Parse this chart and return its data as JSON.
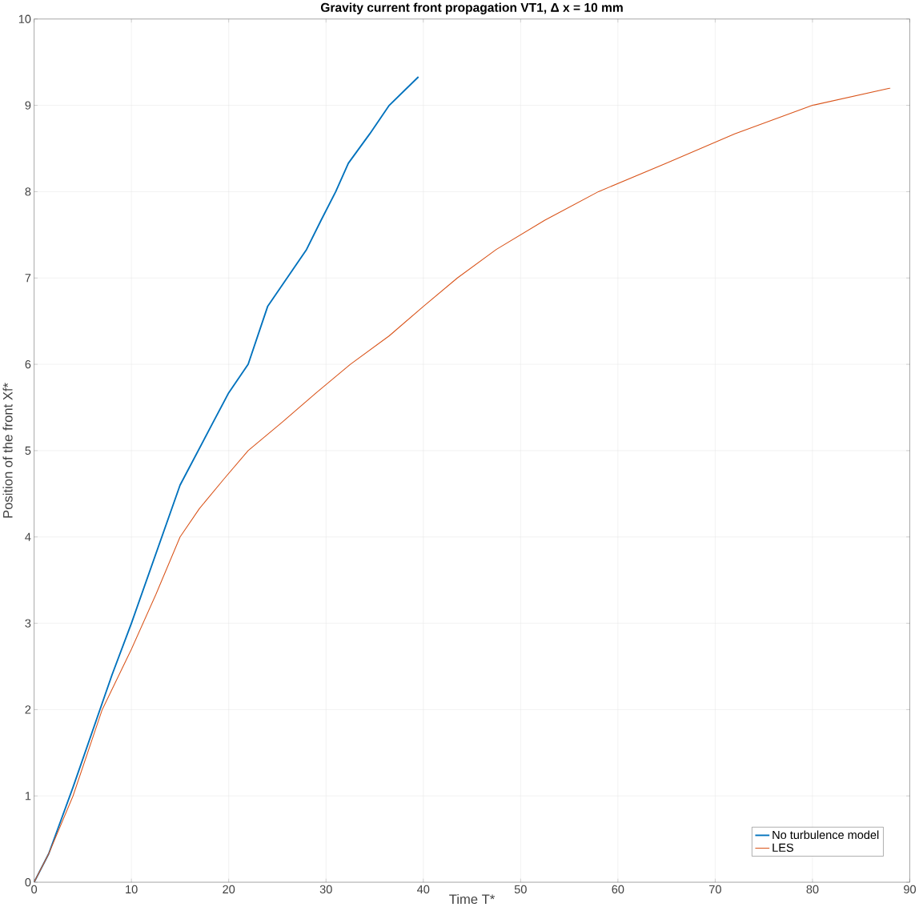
{
  "chart_data": {
    "type": "line",
    "title": "Gravity current front propagation VT1, Δ x = 10 mm",
    "xlabel": "Time T*",
    "ylabel": "Position of the front Xf*",
    "xlim": [
      0,
      90
    ],
    "ylim": [
      0,
      10
    ],
    "xticks": [
      0,
      10,
      20,
      30,
      40,
      50,
      60,
      70,
      80,
      90
    ],
    "yticks": [
      0,
      1,
      2,
      3,
      4,
      5,
      6,
      7,
      8,
      9,
      10
    ],
    "grid": true,
    "legend": "bottom right",
    "series": [
      {
        "name": "No turbulence model",
        "color": "#0072bd",
        "x": [
          0,
          1.5,
          4,
          8,
          10,
          12.5,
          15,
          18.5,
          20,
          22,
          24,
          26,
          28,
          29.5,
          31,
          32.3,
          34.5,
          36.5,
          39.5
        ],
        "values": [
          0,
          0.33,
          1.1,
          2.4,
          3,
          3.8,
          4.6,
          5.35,
          5.67,
          6,
          6.67,
          7,
          7.33,
          7.67,
          8,
          8.33,
          8.67,
          9,
          9.33
        ]
      },
      {
        "name": "LES",
        "color": "#d95319",
        "x": [
          0,
          1.5,
          4,
          7,
          10,
          12.5,
          15,
          17,
          19.5,
          22,
          25.5,
          29,
          32.5,
          36.5,
          40,
          43.5,
          47.5,
          52.5,
          58,
          65,
          72,
          80,
          88
        ],
        "values": [
          0,
          0.33,
          1,
          2,
          2.7,
          3.33,
          4,
          4.33,
          4.67,
          5,
          5.33,
          5.67,
          6,
          6.33,
          6.67,
          7,
          7.33,
          7.67,
          8,
          8.33,
          8.67,
          9,
          9.2
        ]
      }
    ]
  }
}
